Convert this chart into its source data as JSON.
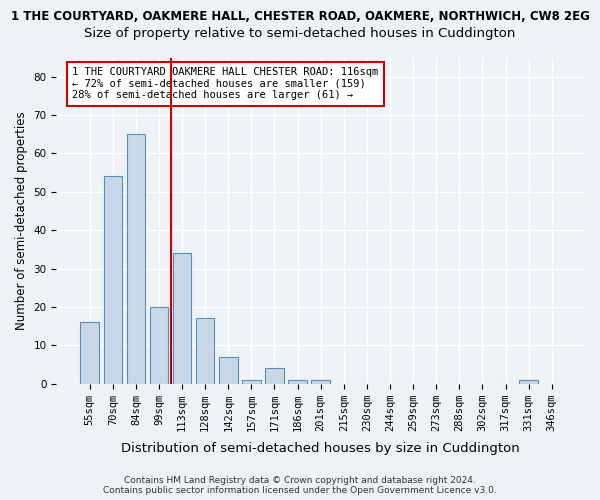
{
  "title_line1": "1 THE COURTYARD, OAKMERE HALL, CHESTER ROAD, OAKMERE, NORTHWICH, CW8 2EG",
  "title_line2": "Size of property relative to semi-detached houses in Cuddington",
  "xlabel": "Distribution of semi-detached houses by size in Cuddington",
  "ylabel": "Number of semi-detached properties",
  "categories": [
    "55sqm",
    "70sqm",
    "84sqm",
    "99sqm",
    "113sqm",
    "128sqm",
    "142sqm",
    "157sqm",
    "171sqm",
    "186sqm",
    "201sqm",
    "215sqm",
    "230sqm",
    "244sqm",
    "259sqm",
    "273sqm",
    "288sqm",
    "302sqm",
    "317sqm",
    "331sqm",
    "346sqm"
  ],
  "values": [
    16,
    54,
    65,
    20,
    34,
    17,
    7,
    1,
    4,
    1,
    1,
    0,
    0,
    0,
    0,
    0,
    0,
    0,
    0,
    1,
    0
  ],
  "bar_color": "#c8d8e8",
  "bar_edge_color": "#5b8db8",
  "ylim": [
    0,
    85
  ],
  "yticks": [
    0,
    10,
    20,
    30,
    40,
    50,
    60,
    70,
    80
  ],
  "red_line_x": 3.5,
  "annotation_title": "1 THE COURTYARD OAKMERE HALL CHESTER ROAD: 116sqm",
  "annotation_line2": "← 72% of semi-detached houses are smaller (159)",
  "annotation_line3": "28% of semi-detached houses are larger (61) →",
  "annotation_box_color": "#ffffff",
  "annotation_box_edge_color": "#cc0000",
  "footer_line1": "Contains HM Land Registry data © Crown copyright and database right 2024.",
  "footer_line2": "Contains public sector information licensed under the Open Government Licence v3.0.",
  "background_color": "#eef2f7",
  "grid_color": "#ffffff",
  "title_fontsize": 8.5,
  "subtitle_fontsize": 9.5,
  "axis_label_fontsize": 8.5,
  "tick_fontsize": 7.5,
  "annotation_fontsize": 7.5,
  "footer_fontsize": 6.5
}
